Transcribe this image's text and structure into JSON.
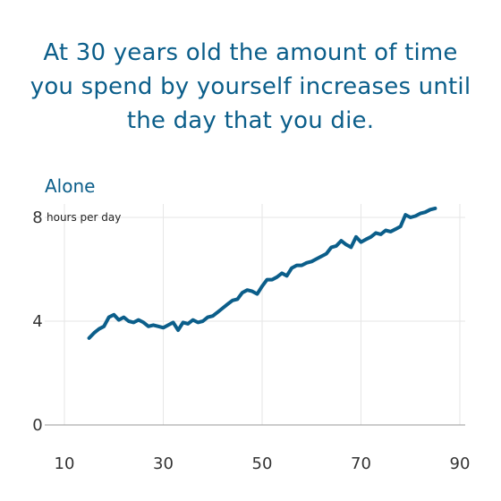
{
  "header": {
    "title": "At 30 years old the amount of time you spend by yourself increases until the day that you die."
  },
  "colors": {
    "line": "#0b5e8a",
    "title": "#0b5e8a",
    "grid": "#e6e6e6",
    "axis": "#999999"
  },
  "chart_data": {
    "type": "line",
    "series": [
      {
        "name": "Alone",
        "x": [
          15,
          16,
          17,
          18,
          19,
          20,
          21,
          22,
          23,
          24,
          25,
          26,
          27,
          28,
          29,
          30,
          31,
          32,
          33,
          34,
          35,
          36,
          37,
          38,
          39,
          40,
          41,
          42,
          43,
          44,
          45,
          46,
          47,
          48,
          49,
          50,
          51,
          52,
          53,
          54,
          55,
          56,
          57,
          58,
          59,
          60,
          61,
          62,
          63,
          64,
          65,
          66,
          67,
          68,
          69,
          70,
          71,
          72,
          73,
          74,
          75,
          76,
          77,
          78,
          79,
          80,
          81,
          82,
          83,
          84,
          85
        ],
        "values": [
          3.35,
          3.55,
          3.7,
          3.8,
          4.15,
          4.25,
          4.05,
          4.15,
          4.0,
          3.95,
          4.05,
          3.95,
          3.8,
          3.85,
          3.8,
          3.75,
          3.85,
          3.95,
          3.65,
          3.95,
          3.9,
          4.05,
          3.95,
          4.0,
          4.15,
          4.2,
          4.35,
          4.5,
          4.65,
          4.8,
          4.85,
          5.1,
          5.2,
          5.15,
          5.05,
          5.35,
          5.6,
          5.6,
          5.7,
          5.85,
          5.75,
          6.05,
          6.15,
          6.15,
          6.25,
          6.3,
          6.4,
          6.5,
          6.6,
          6.85,
          6.9,
          7.1,
          6.95,
          6.85,
          7.25,
          7.05,
          7.15,
          7.25,
          7.4,
          7.35,
          7.5,
          7.45,
          7.55,
          7.65,
          8.1,
          8.0,
          8.05,
          8.15,
          8.2,
          8.3,
          8.35
        ]
      }
    ],
    "title": "At 30 years old the amount of time you spend by yourself increases until the day that you die.",
    "series_label": "Alone",
    "y_unit_label": "hours per day",
    "xlim": [
      10,
      90
    ],
    "ylim": [
      0,
      8
    ],
    "x_ticks": [
      10,
      30,
      50,
      70,
      90
    ],
    "y_ticks": [
      0,
      4,
      8
    ],
    "grid": true
  }
}
